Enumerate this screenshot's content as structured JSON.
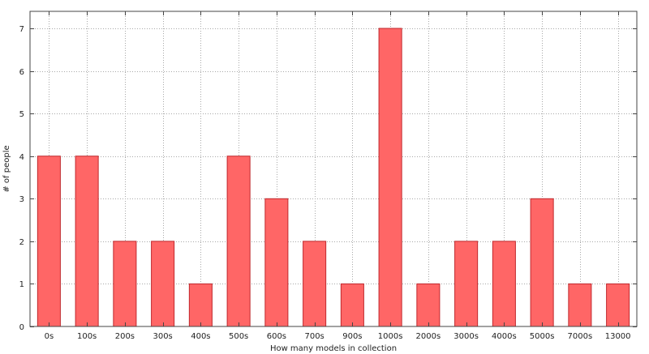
{
  "chart_data": {
    "type": "bar",
    "categories": [
      "0s",
      "100s",
      "200s",
      "300s",
      "400s",
      "500s",
      "600s",
      "700s",
      "900s",
      "1000s",
      "2000s",
      "3000s",
      "4000s",
      "5000s",
      "7000s",
      "13000"
    ],
    "values": [
      4,
      4,
      2,
      2,
      1,
      4,
      3,
      2,
      1,
      7,
      1,
      2,
      2,
      3,
      1,
      1
    ],
    "title": "",
    "xlabel": "How many models in collection",
    "ylabel": "# of people",
    "ylim": [
      0,
      7.4
    ],
    "yticks": [
      0,
      1,
      2,
      3,
      4,
      5,
      6,
      7
    ],
    "grid": true,
    "bar_color": "#ff6666",
    "bar_edge_color": "#c0282d"
  }
}
